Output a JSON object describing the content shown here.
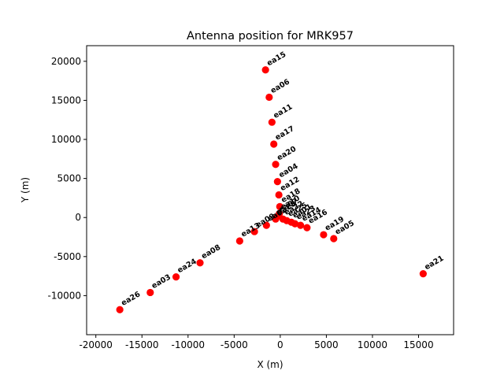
{
  "chart_data": {
    "type": "scatter",
    "title": "Antenna position for MRK957",
    "xlabel": "X (m)",
    "ylabel": "Y (m)",
    "xlim": [
      -21000,
      18800
    ],
    "ylim": [
      -15000,
      22000
    ],
    "xticks": [
      -20000,
      -15000,
      -10000,
      -5000,
      0,
      5000,
      10000,
      15000
    ],
    "yticks": [
      -10000,
      -5000,
      0,
      5000,
      10000,
      15000,
      20000
    ],
    "grid": false,
    "legend": "none",
    "marker_color": "#ff0000",
    "points": [
      {
        "label": "ea15",
        "x": -1600,
        "y": 18900
      },
      {
        "label": "ea06",
        "x": -1200,
        "y": 15400
      },
      {
        "label": "ea11",
        "x": -900,
        "y": 12200
      },
      {
        "label": "ea17",
        "x": -700,
        "y": 9400
      },
      {
        "label": "ea20",
        "x": -500,
        "y": 6800
      },
      {
        "label": "ea04",
        "x": -300,
        "y": 4600
      },
      {
        "label": "ea12",
        "x": -150,
        "y": 2900
      },
      {
        "label": "ea18",
        "x": -50,
        "y": 1400
      },
      {
        "label": "ea10",
        "x": -100,
        "y": 500
      },
      {
        "label": "ea07",
        "x": -300,
        "y": 150
      },
      {
        "label": "ea28",
        "x": -500,
        "y": -200
      },
      {
        "label": "ea22",
        "x": 300,
        "y": -200
      },
      {
        "label": "ea25",
        "x": 700,
        "y": -400
      },
      {
        "label": "ea01",
        "x": 1200,
        "y": -600
      },
      {
        "label": "ea23",
        "x": 1600,
        "y": -800
      },
      {
        "label": "ea14",
        "x": 2200,
        "y": -1000
      },
      {
        "label": "ea16",
        "x": 2900,
        "y": -1300
      },
      {
        "label": "ea02",
        "x": -1500,
        "y": -1000
      },
      {
        "label": "ea09",
        "x": -2800,
        "y": -1800
      },
      {
        "label": "ea13",
        "x": -4400,
        "y": -3000
      },
      {
        "label": "ea08",
        "x": -8700,
        "y": -5800
      },
      {
        "label": "ea24",
        "x": -11300,
        "y": -7600
      },
      {
        "label": "ea03",
        "x": -14100,
        "y": -9600
      },
      {
        "label": "ea26",
        "x": -17400,
        "y": -11800
      },
      {
        "label": "ea19",
        "x": 4700,
        "y": -2200
      },
      {
        "label": "ea05",
        "x": 5800,
        "y": -2700
      },
      {
        "label": "ea21",
        "x": 15500,
        "y": -7200
      }
    ]
  }
}
